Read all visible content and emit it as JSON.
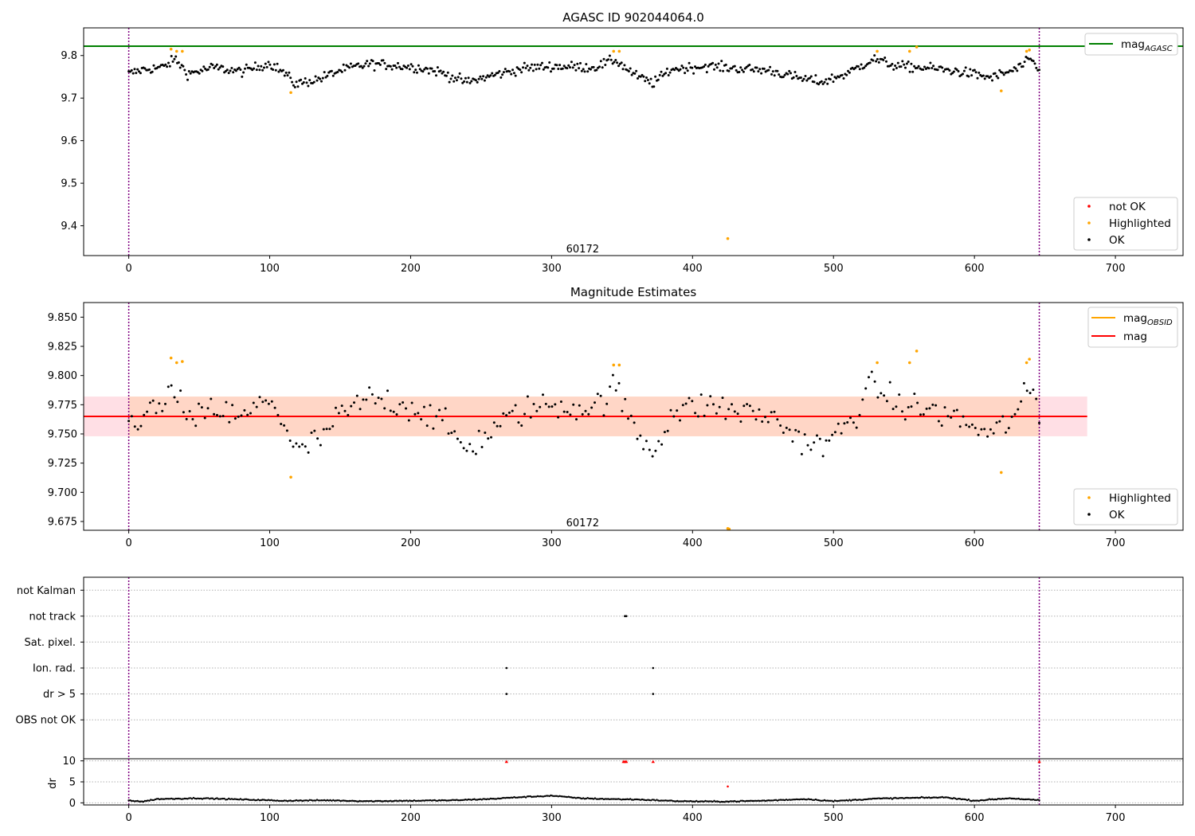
{
  "colors": {
    "ok": "#000000",
    "highlighted": "#ffa500",
    "not_ok": "#ff0000",
    "mag_agasc": "#008000",
    "mag_obsid": "#ffa500",
    "mag": "#ff0000",
    "band_outer": "#ffc0cb",
    "band_inner": "#ffd0b0",
    "obs_boundary": "#800080",
    "grid": "#b0b0b0"
  },
  "chart_data": [
    {
      "type": "scatter",
      "title": "AGASC ID 902044064.0",
      "annotation": "60172",
      "annotation_x": 322,
      "annotation_y": 9.345,
      "xlim": [
        -32,
        748
      ],
      "ylim": [
        9.33,
        9.865
      ],
      "xticks": [
        0,
        100,
        200,
        300,
        400,
        500,
        600,
        700
      ],
      "yticks": [
        9.4,
        9.5,
        9.6,
        9.7,
        9.8
      ],
      "ytick_labels": [
        "9.4",
        "9.5",
        "9.6",
        "9.7",
        "9.8"
      ],
      "obs_boundaries": [
        0,
        646
      ],
      "mag_agasc": 9.822,
      "legend_lines": [
        {
          "label": "mag",
          "sub": "AGASC",
          "color": "mag_agasc"
        }
      ],
      "legend_points": [
        {
          "label": "not OK",
          "color": "not_ok"
        },
        {
          "label": "Highlighted",
          "color": "highlighted"
        },
        {
          "label": "OK",
          "color": "ok"
        }
      ],
      "highlighted_points": [
        {
          "x": 30,
          "y": 9.815
        },
        {
          "x": 34,
          "y": 9.81
        },
        {
          "x": 38,
          "y": 9.81
        },
        {
          "x": 115,
          "y": 9.713
        },
        {
          "x": 344,
          "y": 9.81
        },
        {
          "x": 348,
          "y": 9.81
        },
        {
          "x": 425,
          "y": 9.37
        },
        {
          "x": 531,
          "y": 9.81
        },
        {
          "x": 554,
          "y": 9.81
        },
        {
          "x": 559,
          "y": 9.82
        },
        {
          "x": 619,
          "y": 9.717
        },
        {
          "x": 637,
          "y": 9.81
        },
        {
          "x": 639,
          "y": 9.813
        }
      ],
      "ok_trend": [
        {
          "x": 0,
          "y": 9.757
        },
        {
          "x": 10,
          "y": 9.767
        },
        {
          "x": 25,
          "y": 9.773
        },
        {
          "x": 33,
          "y": 9.792
        },
        {
          "x": 42,
          "y": 9.757
        },
        {
          "x": 60,
          "y": 9.772
        },
        {
          "x": 80,
          "y": 9.762
        },
        {
          "x": 100,
          "y": 9.782
        },
        {
          "x": 110,
          "y": 9.76
        },
        {
          "x": 118,
          "y": 9.733
        },
        {
          "x": 135,
          "y": 9.745
        },
        {
          "x": 150,
          "y": 9.765
        },
        {
          "x": 170,
          "y": 9.78
        },
        {
          "x": 185,
          "y": 9.778
        },
        {
          "x": 205,
          "y": 9.772
        },
        {
          "x": 220,
          "y": 9.762
        },
        {
          "x": 240,
          "y": 9.737
        },
        {
          "x": 260,
          "y": 9.755
        },
        {
          "x": 280,
          "y": 9.77
        },
        {
          "x": 300,
          "y": 9.775
        },
        {
          "x": 330,
          "y": 9.772
        },
        {
          "x": 345,
          "y": 9.79
        },
        {
          "x": 360,
          "y": 9.752
        },
        {
          "x": 372,
          "y": 9.735
        },
        {
          "x": 385,
          "y": 9.768
        },
        {
          "x": 410,
          "y": 9.775
        },
        {
          "x": 430,
          "y": 9.77
        },
        {
          "x": 455,
          "y": 9.765
        },
        {
          "x": 475,
          "y": 9.747
        },
        {
          "x": 492,
          "y": 9.738
        },
        {
          "x": 510,
          "y": 9.758
        },
        {
          "x": 528,
          "y": 9.792
        },
        {
          "x": 545,
          "y": 9.775
        },
        {
          "x": 570,
          "y": 9.77
        },
        {
          "x": 590,
          "y": 9.762
        },
        {
          "x": 612,
          "y": 9.748
        },
        {
          "x": 630,
          "y": 9.768
        },
        {
          "x": 640,
          "y": 9.79
        },
        {
          "x": 646,
          "y": 9.765
        }
      ],
      "ok_x_range": [
        0,
        646
      ],
      "ok_count": 620
    },
    {
      "type": "scatter",
      "title": "Magnitude Estimates",
      "annotation": "60172",
      "annotation_x": 322,
      "annotation_y": 9.6735,
      "xlim": [
        -32,
        748
      ],
      "ylim": [
        9.6675,
        9.8625
      ],
      "xticks": [
        0,
        100,
        200,
        300,
        400,
        500,
        600,
        700
      ],
      "yticks": [
        9.675,
        9.7,
        9.725,
        9.75,
        9.775,
        9.8,
        9.825,
        9.85
      ],
      "ytick_labels": [
        "9.675",
        "9.700",
        "9.725",
        "9.750",
        "9.775",
        "9.800",
        "9.825",
        "9.850"
      ],
      "obs_boundaries": [
        0,
        646
      ],
      "mag": 9.765,
      "band_outer": [
        9.748,
        9.782
      ],
      "band_inner": [
        9.748,
        9.782
      ],
      "band_x": [
        -32,
        680
      ],
      "band_inner_x": [
        0,
        646
      ],
      "legend_lines": [
        {
          "label": "mag",
          "sub": "OBSID",
          "color": "mag_obsid"
        },
        {
          "label": "mag",
          "sub": "",
          "color": "mag"
        }
      ],
      "legend_points": [
        {
          "label": "Highlighted",
          "color": "highlighted"
        },
        {
          "label": "OK",
          "color": "ok"
        }
      ],
      "highlighted_points": [
        {
          "x": 30,
          "y": 9.815
        },
        {
          "x": 34,
          "y": 9.811
        },
        {
          "x": 38,
          "y": 9.812
        },
        {
          "x": 115,
          "y": 9.713
        },
        {
          "x": 344,
          "y": 9.809
        },
        {
          "x": 348,
          "y": 9.809
        },
        {
          "x": 425,
          "y": 9.669
        },
        {
          "x": 426,
          "y": 9.6685
        },
        {
          "x": 531,
          "y": 9.811
        },
        {
          "x": 554,
          "y": 9.811
        },
        {
          "x": 559,
          "y": 9.821
        },
        {
          "x": 619,
          "y": 9.717
        },
        {
          "x": 637,
          "y": 9.811
        },
        {
          "x": 639,
          "y": 9.814
        }
      ],
      "ok_trend": [
        {
          "x": 0,
          "y": 9.757
        },
        {
          "x": 10,
          "y": 9.767
        },
        {
          "x": 25,
          "y": 9.773
        },
        {
          "x": 33,
          "y": 9.792
        },
        {
          "x": 42,
          "y": 9.757
        },
        {
          "x": 60,
          "y": 9.772
        },
        {
          "x": 80,
          "y": 9.762
        },
        {
          "x": 100,
          "y": 9.782
        },
        {
          "x": 110,
          "y": 9.76
        },
        {
          "x": 118,
          "y": 9.733
        },
        {
          "x": 135,
          "y": 9.745
        },
        {
          "x": 150,
          "y": 9.765
        },
        {
          "x": 170,
          "y": 9.78
        },
        {
          "x": 185,
          "y": 9.778
        },
        {
          "x": 205,
          "y": 9.772
        },
        {
          "x": 220,
          "y": 9.762
        },
        {
          "x": 240,
          "y": 9.737
        },
        {
          "x": 260,
          "y": 9.755
        },
        {
          "x": 280,
          "y": 9.77
        },
        {
          "x": 300,
          "y": 9.775
        },
        {
          "x": 330,
          "y": 9.772
        },
        {
          "x": 345,
          "y": 9.79
        },
        {
          "x": 360,
          "y": 9.752
        },
        {
          "x": 372,
          "y": 9.735
        },
        {
          "x": 385,
          "y": 9.768
        },
        {
          "x": 410,
          "y": 9.775
        },
        {
          "x": 430,
          "y": 9.77
        },
        {
          "x": 455,
          "y": 9.765
        },
        {
          "x": 475,
          "y": 9.747
        },
        {
          "x": 492,
          "y": 9.738
        },
        {
          "x": 510,
          "y": 9.758
        },
        {
          "x": 528,
          "y": 9.792
        },
        {
          "x": 545,
          "y": 9.775
        },
        {
          "x": 570,
          "y": 9.77
        },
        {
          "x": 590,
          "y": 9.762
        },
        {
          "x": 612,
          "y": 9.748
        },
        {
          "x": 630,
          "y": 9.768
        },
        {
          "x": 640,
          "y": 9.79
        },
        {
          "x": 646,
          "y": 9.765
        }
      ],
      "ok_x_range": [
        0,
        646
      ],
      "ok_count": 300
    },
    {
      "type": "scatter",
      "title": "",
      "xlim": [
        -32,
        748
      ],
      "ylim": [
        -0.5,
        6.5
      ],
      "xticks": [
        0,
        100,
        200,
        300,
        400,
        500,
        600,
        700
      ],
      "obs_boundaries": [
        0,
        646
      ],
      "flag_labels": [
        "not Kalman",
        "not track",
        "Sat. pixel.",
        "Ion. rad.",
        "dr > 5",
        "OBS not OK"
      ],
      "flag_levels": [
        6,
        5,
        4,
        3,
        2,
        1
      ],
      "flag_points": [
        {
          "x": 352,
          "y": 5
        },
        {
          "x": 353,
          "y": 5
        },
        {
          "x": 268,
          "y": 3
        },
        {
          "x": 372,
          "y": 3
        },
        {
          "x": 268,
          "y": 2
        },
        {
          "x": 372,
          "y": 2
        }
      ],
      "dr_panel": {
        "ylabel": "dr",
        "ylim": [
          -0.5,
          10.5
        ],
        "yticks": [
          0,
          5,
          10
        ],
        "ytick_labels": [
          "0",
          "5",
          "10"
        ],
        "clipped_points": [
          {
            "x": 268,
            "y": 9.8
          },
          {
            "x": 351,
            "y": 9.8
          },
          {
            "x": 352,
            "y": 9.8
          },
          {
            "x": 353,
            "y": 9.8
          },
          {
            "x": 372,
            "y": 9.8
          },
          {
            "x": 646,
            "y": 9.8
          }
        ],
        "outlier_points": [
          {
            "x": 425,
            "y": 3.9
          }
        ],
        "dr_trend": [
          {
            "x": 0,
            "y": 0.6
          },
          {
            "x": 10,
            "y": 0.3
          },
          {
            "x": 20,
            "y": 0.9
          },
          {
            "x": 50,
            "y": 1.1
          },
          {
            "x": 80,
            "y": 0.8
          },
          {
            "x": 110,
            "y": 0.5
          },
          {
            "x": 140,
            "y": 0.6
          },
          {
            "x": 170,
            "y": 0.4
          },
          {
            "x": 200,
            "y": 0.5
          },
          {
            "x": 230,
            "y": 0.6
          },
          {
            "x": 255,
            "y": 0.9
          },
          {
            "x": 275,
            "y": 1.3
          },
          {
            "x": 300,
            "y": 1.7
          },
          {
            "x": 320,
            "y": 1.1
          },
          {
            "x": 340,
            "y": 0.9
          },
          {
            "x": 360,
            "y": 0.8
          },
          {
            "x": 390,
            "y": 0.4
          },
          {
            "x": 420,
            "y": 0.3
          },
          {
            "x": 450,
            "y": 0.5
          },
          {
            "x": 480,
            "y": 0.9
          },
          {
            "x": 500,
            "y": 0.4
          },
          {
            "x": 530,
            "y": 1.0
          },
          {
            "x": 560,
            "y": 1.2
          },
          {
            "x": 580,
            "y": 1.3
          },
          {
            "x": 600,
            "y": 0.5
          },
          {
            "x": 625,
            "y": 1.1
          },
          {
            "x": 646,
            "y": 0.6
          }
        ],
        "dr_count": 620
      }
    }
  ]
}
